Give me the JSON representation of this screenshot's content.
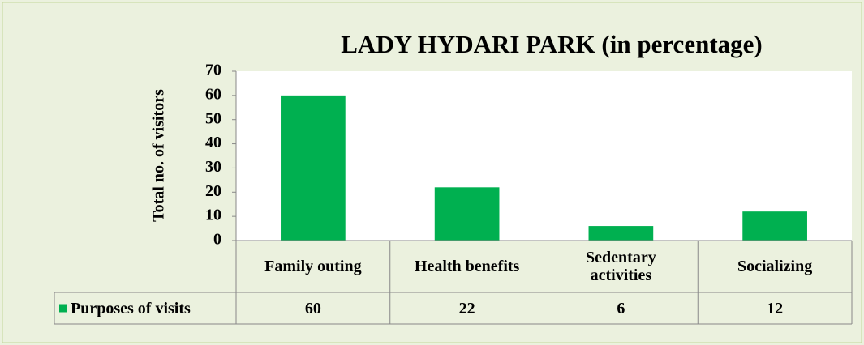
{
  "chart_data": {
    "type": "bar",
    "title": "LADY HYDARI PARK (in percentage)",
    "y_label": "Total  no. of visitors",
    "categories": [
      "Family outing",
      "Health benefits",
      "Sedentary activities",
      "Socializing"
    ],
    "series": [
      {
        "name": "Purposes of visits",
        "color": "#00b050",
        "values": [
          60,
          22,
          6,
          12
        ]
      }
    ],
    "ylim": [
      0,
      70
    ],
    "yticks": [
      0,
      10,
      20,
      30,
      40,
      50,
      60,
      70
    ],
    "grid": false,
    "data_table": true
  }
}
